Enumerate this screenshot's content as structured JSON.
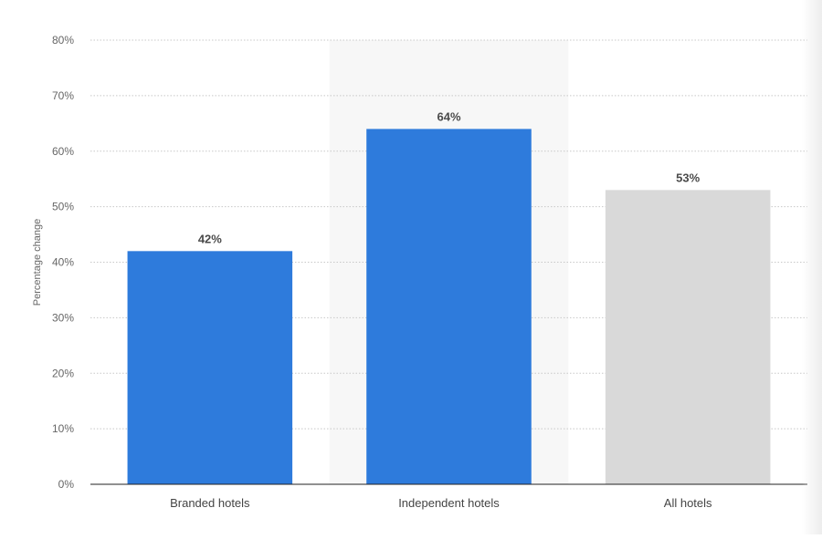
{
  "chart_data": {
    "type": "bar",
    "categories": [
      "Branded hotels",
      "Independent hotels",
      "All hotels"
    ],
    "values": [
      42,
      64,
      53
    ],
    "value_labels": [
      "42%",
      "64%",
      "53%"
    ],
    "title": "",
    "xlabel": "",
    "ylabel": "Percentage change",
    "ylim": [
      0,
      80
    ],
    "yticks": [
      0,
      10,
      20,
      30,
      40,
      50,
      60,
      70,
      80
    ],
    "ytick_labels": [
      "0%",
      "10%",
      "20%",
      "30%",
      "40%",
      "50%",
      "60%",
      "70%",
      "80%"
    ],
    "grid": true,
    "highlighted_category": "Independent hotels",
    "colors": {
      "bars": [
        "#2e7bdc",
        "#2e7bdc",
        "#d9d9d9"
      ],
      "highlight_band": "#f7f7f7",
      "grid": "#c8c8c8",
      "axis": "#222222",
      "tick_text": "#666666",
      "label_text": "#444444",
      "value_text": "#4a4a4a"
    }
  }
}
